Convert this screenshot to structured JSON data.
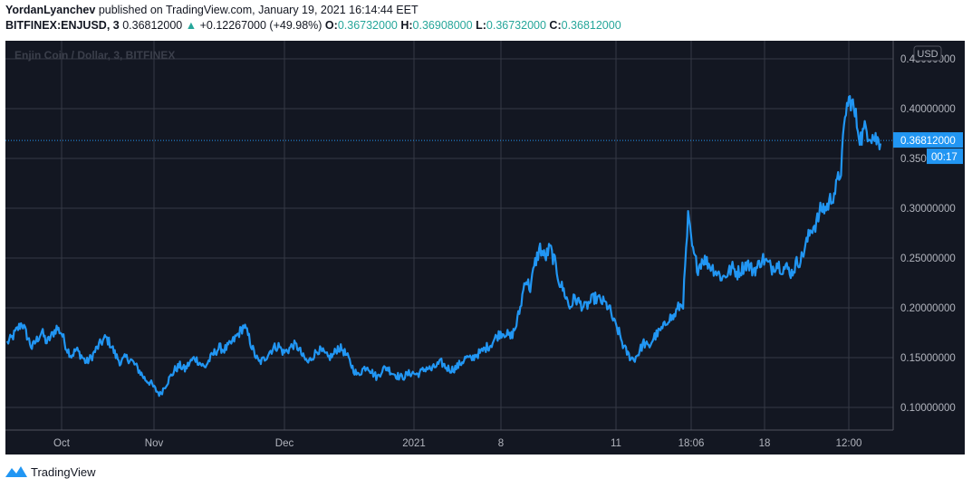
{
  "header": {
    "author": "YordanLyanchev",
    "published_text": "published on TradingView.com, January 19, 2021 16:14:44 EET",
    "symbol": "BITFINEX:ENJUSD, 3",
    "last": "0.36812000",
    "change": "+0.12267000 (+49.98%)",
    "o_label": "O:",
    "o_value": "0.36732000",
    "h_label": "H:",
    "h_value": "0.36908000",
    "l_label": "L:",
    "l_value": "0.36732000",
    "c_label": "C:",
    "c_value": "0.36812000"
  },
  "watermark": "Enjin Coin / Dollar, 3, BITFINEX",
  "currency_badge": "USD",
  "price_tag": {
    "price": "0.36812000",
    "countdown": "00:17"
  },
  "footer": {
    "brand": "TradingView"
  },
  "colors": {
    "background": "#131722",
    "line": "#2196f3",
    "grid": "#363a45",
    "axis_text": "#b2b5be",
    "up": "#26a69a",
    "tag": "#2196f3"
  },
  "chart_data": {
    "type": "line",
    "title": "Enjin Coin / Dollar, 3, BITFINEX",
    "xlabel": "",
    "ylabel": "",
    "ylim": [
      0.09,
      0.45
    ],
    "grid": true,
    "x_tick_labels": [
      "Oct",
      "Nov",
      "Dec",
      "2021",
      "8",
      "11",
      "18:06",
      "18",
      "12:00"
    ],
    "y_tick_labels": [
      "0.10000000",
      "0.15000000",
      "0.20000000",
      "0.25000000",
      "0.30000000",
      "0.35000000",
      "0.40000000",
      "0.45000000"
    ],
    "y_ticks": [
      0.1,
      0.15,
      0.2,
      0.25,
      0.3,
      0.35,
      0.4,
      0.45
    ],
    "series": [
      {
        "values": [
          0.165,
          0.17,
          0.178,
          0.185,
          0.172,
          0.16,
          0.168,
          0.176,
          0.165,
          0.172,
          0.18,
          0.175,
          0.16,
          0.152,
          0.158,
          0.152,
          0.145,
          0.15,
          0.158,
          0.165,
          0.17,
          0.163,
          0.152,
          0.145,
          0.15,
          0.148,
          0.142,
          0.135,
          0.128,
          0.125,
          0.118,
          0.113,
          0.122,
          0.13,
          0.138,
          0.142,
          0.138,
          0.145,
          0.15,
          0.145,
          0.14,
          0.148,
          0.155,
          0.16,
          0.158,
          0.162,
          0.168,
          0.175,
          0.182,
          0.17,
          0.155,
          0.145,
          0.148,
          0.155,
          0.16,
          0.162,
          0.155,
          0.158,
          0.163,
          0.16,
          0.15,
          0.145,
          0.152,
          0.158,
          0.155,
          0.15,
          0.152,
          0.16,
          0.158,
          0.15,
          0.14,
          0.132,
          0.138,
          0.142,
          0.135,
          0.13,
          0.138,
          0.14,
          0.135,
          0.132,
          0.13,
          0.133,
          0.135,
          0.133,
          0.136,
          0.14,
          0.138,
          0.142,
          0.145,
          0.14,
          0.138,
          0.14,
          0.145,
          0.15,
          0.148,
          0.153,
          0.155,
          0.16,
          0.163,
          0.17,
          0.175,
          0.175,
          0.17,
          0.18,
          0.2,
          0.23,
          0.22,
          0.245,
          0.26,
          0.25,
          0.26,
          0.245,
          0.225,
          0.215,
          0.2,
          0.21,
          0.205,
          0.2,
          0.205,
          0.21,
          0.208,
          0.205,
          0.2,
          0.185,
          0.175,
          0.16,
          0.152,
          0.148,
          0.155,
          0.165,
          0.16,
          0.17,
          0.175,
          0.18,
          0.19,
          0.19,
          0.2,
          0.205,
          0.29,
          0.255,
          0.24,
          0.25,
          0.245,
          0.24,
          0.235,
          0.23,
          0.235,
          0.24,
          0.235,
          0.24,
          0.245,
          0.238,
          0.24,
          0.25,
          0.245,
          0.24,
          0.245,
          0.24,
          0.24,
          0.235,
          0.245,
          0.25,
          0.265,
          0.28,
          0.285,
          0.3,
          0.3,
          0.31,
          0.32,
          0.34,
          0.4,
          0.41,
          0.39,
          0.37,
          0.38,
          0.375,
          0.37,
          0.365
        ]
      }
    ]
  }
}
